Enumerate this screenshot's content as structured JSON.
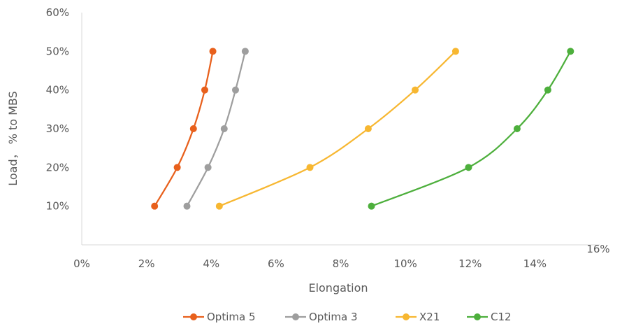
{
  "chart_data": {
    "type": "line",
    "title": "",
    "xlabel": "Elongation",
    "ylabel": "Load， % to MBS",
    "xlim": [
      0,
      16
    ],
    "ylim": [
      0,
      60
    ],
    "x_ticks": [
      "0%",
      "2%",
      "4%",
      "6%",
      "8%",
      "10%",
      "12%",
      "14%",
      "16%"
    ],
    "y_ticks": [
      "10%",
      "20%",
      "30%",
      "40%",
      "50%",
      "60%"
    ],
    "grid": false,
    "legend_position": "bottom",
    "series": [
      {
        "name": "Optima 5",
        "color": "#E8601C",
        "points": [
          [
            2.25,
            10
          ],
          [
            2.95,
            20
          ],
          [
            3.45,
            30
          ],
          [
            3.8,
            40
          ],
          [
            4.05,
            50
          ]
        ]
      },
      {
        "name": "Optima 3",
        "color": "#9E9E9E",
        "points": [
          [
            3.25,
            10
          ],
          [
            3.9,
            20
          ],
          [
            4.4,
            30
          ],
          [
            4.75,
            40
          ],
          [
            5.05,
            50
          ]
        ]
      },
      {
        "name": "X21",
        "color": "#F7B731",
        "points": [
          [
            4.25,
            10
          ],
          [
            7.05,
            20
          ],
          [
            8.85,
            30
          ],
          [
            10.3,
            40
          ],
          [
            11.55,
            50
          ]
        ]
      },
      {
        "name": "C12",
        "color": "#4DAF3C",
        "points": [
          [
            8.95,
            10
          ],
          [
            11.95,
            20
          ],
          [
            13.45,
            30
          ],
          [
            14.4,
            40
          ],
          [
            15.1,
            50
          ]
        ]
      }
    ]
  }
}
